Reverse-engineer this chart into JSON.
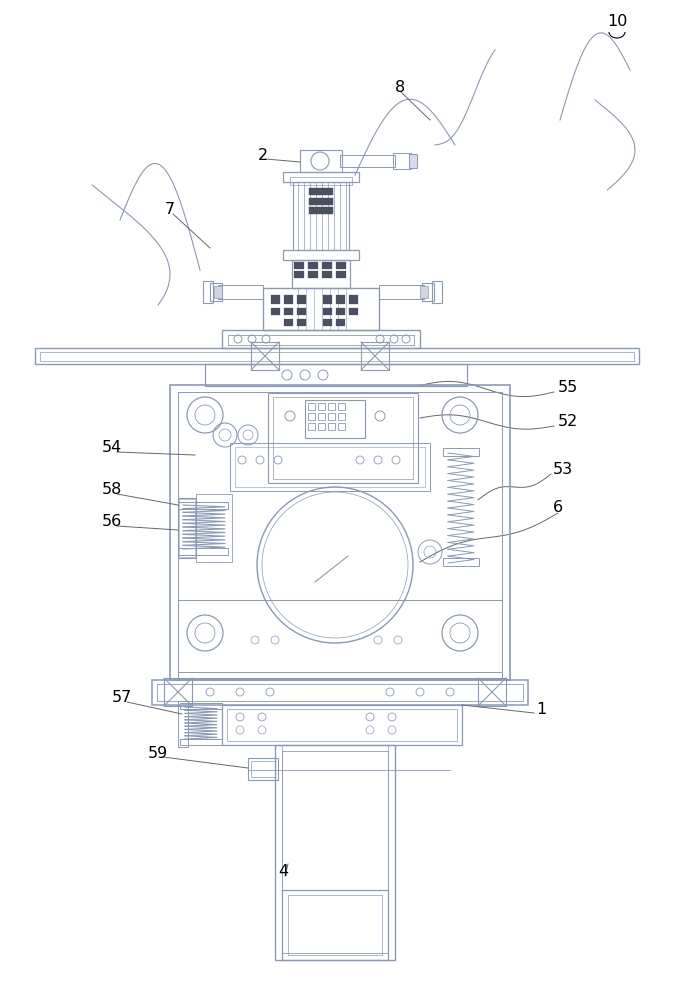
{
  "bg_color": "#ffffff",
  "line_color": "#8a9ab5",
  "dark_line": "#4a5060",
  "figsize": [
    6.74,
    10.0
  ],
  "dpi": 100
}
